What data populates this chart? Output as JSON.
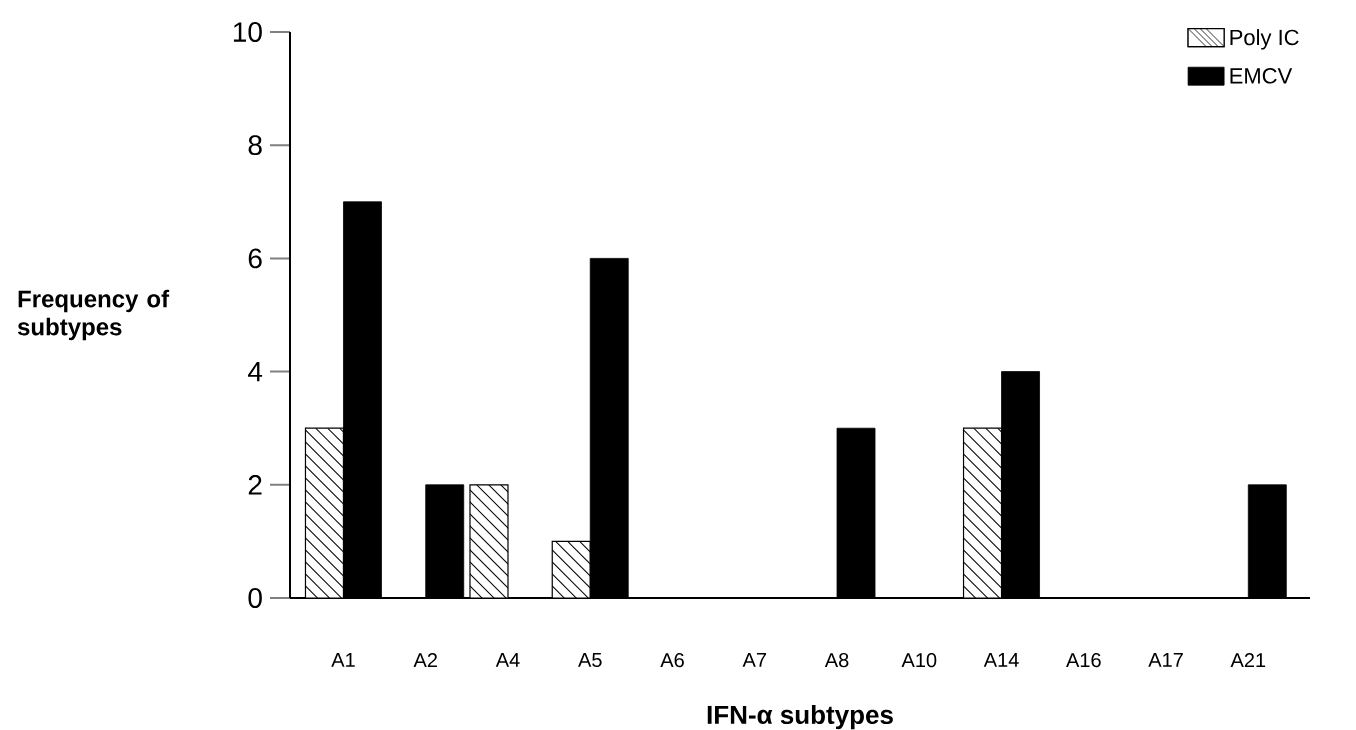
{
  "chart_data": {
    "type": "bar",
    "xlabel": "IFN-α  subtypes",
    "ylabel": "Frequency of subtypes",
    "categories": [
      "A1",
      "A2",
      "A4",
      "A5",
      "A6",
      "A7",
      "A8",
      "A10",
      "A14",
      "A16",
      "A17",
      "A21"
    ],
    "series": [
      {
        "name": "Poly IC",
        "color": "#000000",
        "values": [
          3,
          0,
          2,
          1,
          0,
          0,
          0,
          0,
          3,
          0,
          0,
          0
        ]
      },
      {
        "name": "EMCV",
        "color": "#000000",
        "values": [
          7,
          2,
          0,
          6,
          0,
          0,
          3,
          0,
          4,
          0,
          0,
          2
        ]
      }
    ],
    "ylim": [
      0,
      10
    ],
    "yticks": [
      0,
      2,
      4,
      6,
      8,
      10
    ],
    "legend": "top right"
  }
}
